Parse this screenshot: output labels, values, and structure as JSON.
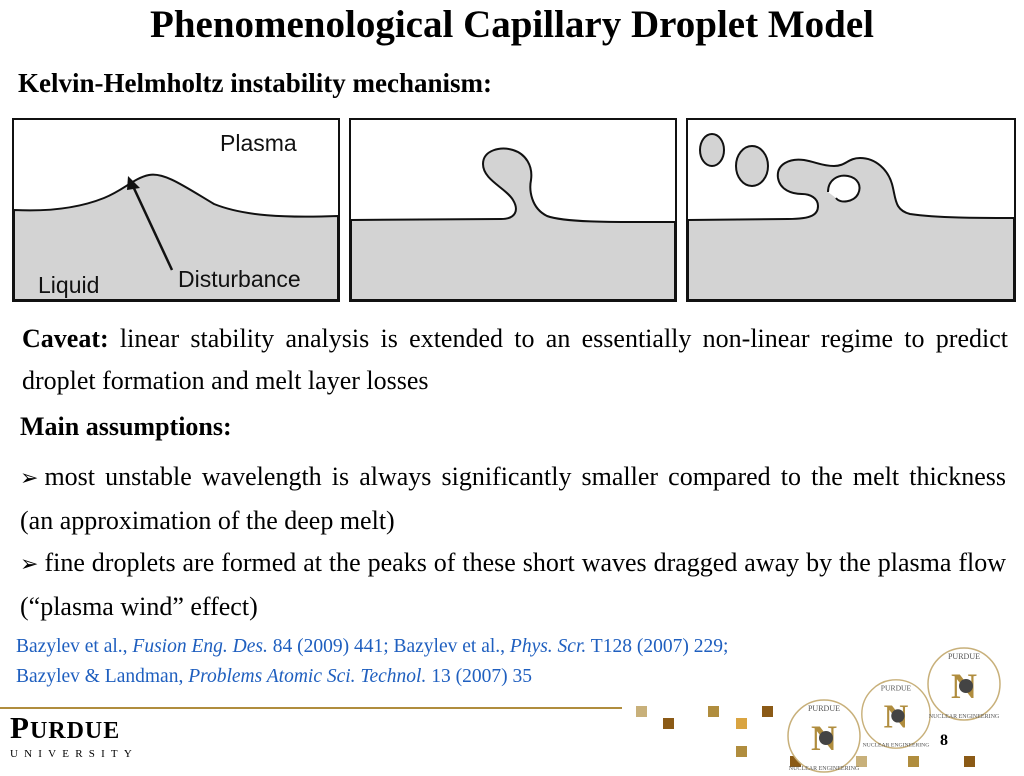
{
  "title": "Phenomenological Capillary Droplet Model",
  "subtitle": "Kelvin-Helmholtz instability mechanism:",
  "figure": {
    "label_plasma": "Plasma",
    "label_liquid": "Liquid",
    "label_disturbance": "Disturbance"
  },
  "caveat": {
    "lead": "Caveat:",
    "text": " linear stability analysis is extended to an essentially non-linear regime to predict droplet formation and melt layer losses"
  },
  "assumptions": {
    "heading": "Main assumptions:",
    "items": [
      "most unstable wavelength is always significantly smaller compared to the melt thickness (an approximation of the deep melt)",
      "fine droplets are formed at the peaks of these short waves dragged away by the plasma flow (“plasma wind” effect)"
    ]
  },
  "references": {
    "r1_authors": "Bazylev et al., ",
    "r1_journal": "Fusion Eng. Des.",
    "r1_rest": " 84 (2009) 441; Bazylev et al., ",
    "r2_journal": "Phys. Scr.",
    "r2_rest": " T128 (2007) 229;",
    "r3_authors": "Bazylev & Landman, ",
    "r3_journal": "Problems Atomic Sci. Technol.",
    "r3_rest": " 13 (2007) 35"
  },
  "footer": {
    "university_name_big": "P",
    "university_name_small": "URDUE",
    "university_sub": "UNIVERSITY",
    "seal_text_top": "PURDUE",
    "seal_text_bottom": "NUCLEAR ENGINEERING",
    "seal_letter": "N",
    "page_number": "8"
  },
  "colors": {
    "liquid_fill": "#d3d3d3",
    "reference_blue": "#1f5fbf",
    "gold": "#b08d3e",
    "brown": "#8b5a16"
  }
}
